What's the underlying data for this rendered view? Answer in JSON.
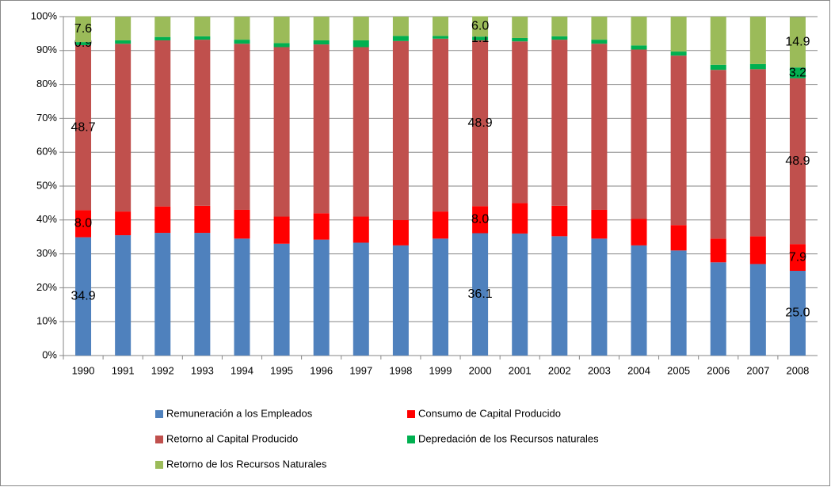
{
  "chart_data": {
    "type": "stacked-bar",
    "categories": [
      "1990",
      "1991",
      "1992",
      "1993",
      "1994",
      "1995",
      "1996",
      "1997",
      "1998",
      "1999",
      "2000",
      "2001",
      "2002",
      "2003",
      "2004",
      "2005",
      "2006",
      "2007",
      "2008"
    ],
    "ylim": [
      0,
      100
    ],
    "yticks": [
      {
        "value": 0,
        "label": "0%"
      },
      {
        "value": 10,
        "label": "10%"
      },
      {
        "value": 20,
        "label": "20%"
      },
      {
        "value": 30,
        "label": "30%"
      },
      {
        "value": 40,
        "label": "40%"
      },
      {
        "value": 50,
        "label": "50%"
      },
      {
        "value": 60,
        "label": "60%"
      },
      {
        "value": 70,
        "label": "70%"
      },
      {
        "value": 80,
        "label": "80%"
      },
      {
        "value": 90,
        "label": "90%"
      },
      {
        "value": 100,
        "label": "100%"
      }
    ],
    "grid": true,
    "legend": "bottom",
    "series": [
      {
        "name": "Remuneración a los Empleados",
        "color": "#4f81bd",
        "values": [
          34.9,
          35.5,
          36.2,
          36.2,
          34.5,
          33.0,
          34.2,
          33.3,
          32.5,
          34.5,
          36.1,
          36.0,
          35.2,
          34.5,
          32.5,
          31.0,
          27.5,
          27.0,
          25.0
        ],
        "value_labels": [
          "34.9",
          null,
          null,
          null,
          null,
          null,
          null,
          null,
          null,
          null,
          "36.1",
          null,
          null,
          null,
          null,
          null,
          null,
          null,
          "25.0"
        ]
      },
      {
        "name": "Consumo de Capital Producido",
        "color": "#ff0000",
        "values": [
          8.0,
          7.0,
          7.8,
          8.0,
          8.5,
          8.0,
          7.8,
          7.7,
          7.5,
          8.0,
          8.0,
          9.0,
          9.0,
          8.5,
          7.8,
          7.5,
          7.0,
          8.2,
          7.9
        ],
        "value_labels": [
          "8.0",
          null,
          null,
          null,
          null,
          null,
          null,
          null,
          null,
          null,
          "8.0",
          null,
          null,
          null,
          null,
          null,
          null,
          null,
          "7.9"
        ]
      },
      {
        "name": "Retorno al Capital Producido",
        "color": "#c0504d",
        "values": [
          48.7,
          49.5,
          49.0,
          49.0,
          49.0,
          50.0,
          49.8,
          50.0,
          52.8,
          51.0,
          48.9,
          47.7,
          49.0,
          49.0,
          50.0,
          50.0,
          49.8,
          49.3,
          48.9
        ],
        "value_labels": [
          "48.7",
          null,
          null,
          null,
          null,
          null,
          null,
          null,
          null,
          null,
          "48.9",
          null,
          null,
          null,
          null,
          null,
          null,
          null,
          "48.9"
        ]
      },
      {
        "name": "Depredación de los Recursos naturales",
        "color": "#00b050",
        "values": [
          0.9,
          1.0,
          1.0,
          1.0,
          1.2,
          1.2,
          1.2,
          2.0,
          1.5,
          0.8,
          1.1,
          1.0,
          1.0,
          1.2,
          1.2,
          1.2,
          1.5,
          1.5,
          3.2
        ],
        "value_labels": [
          "0.9",
          null,
          null,
          null,
          null,
          null,
          null,
          null,
          null,
          null,
          "1.1",
          null,
          null,
          null,
          null,
          null,
          null,
          null,
          "3.2"
        ]
      },
      {
        "name": "Retorno de los Recursos Naturales",
        "color": "#9bbb59",
        "values": [
          7.6,
          7.0,
          6.0,
          5.8,
          6.8,
          7.8,
          7.0,
          7.0,
          5.7,
          5.7,
          6.0,
          6.3,
          5.8,
          6.8,
          8.5,
          10.3,
          14.2,
          14.0,
          14.9
        ],
        "value_labels": [
          "7.6",
          null,
          null,
          null,
          null,
          null,
          null,
          null,
          null,
          null,
          "6.0",
          null,
          null,
          null,
          null,
          null,
          null,
          null,
          "14.9"
        ]
      }
    ]
  }
}
